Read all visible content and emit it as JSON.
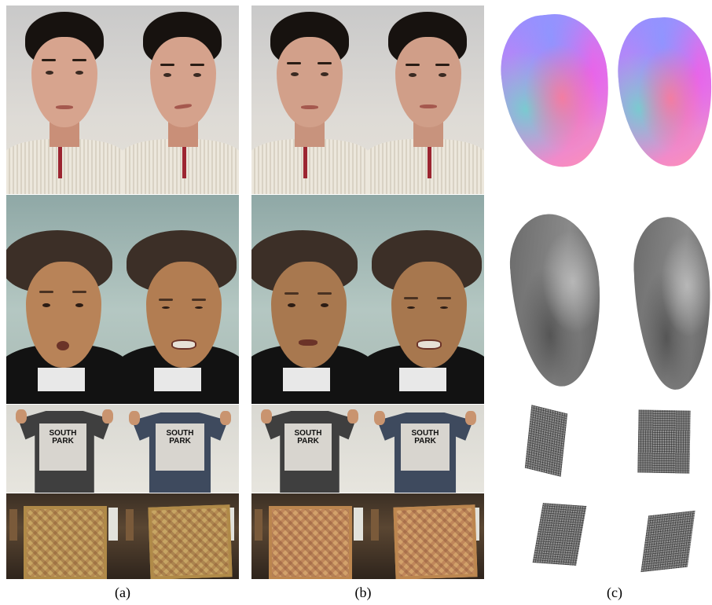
{
  "captions": {
    "a": "(a)",
    "b": "(b)",
    "c": "(c)"
  },
  "rows": {
    "row1": "young man in cream sweater",
    "row2": "older man in dark jacket",
    "row3": "held t-shirt",
    "row4": "held patterned cloth"
  },
  "tshirt_print": {
    "line1": "SOUTH",
    "line2": "PARK"
  },
  "colors": {
    "background": "#ffffff",
    "normal_map_blue": "#9a8cff",
    "normal_map_pink": "#ff8fb5",
    "shaded_grey": "#7a7a7a"
  }
}
